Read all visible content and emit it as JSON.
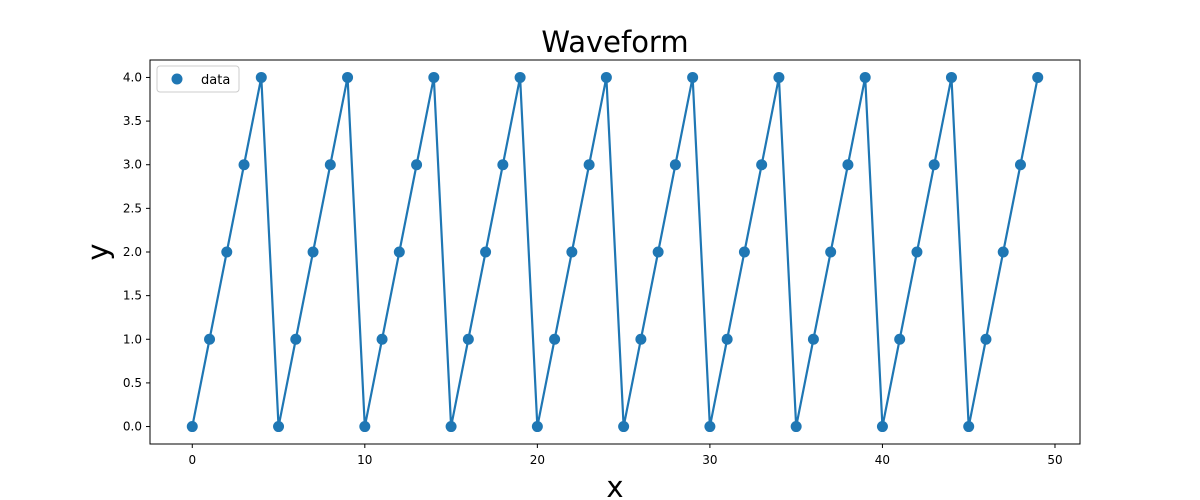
{
  "chart_data": {
    "type": "line",
    "title": "Waveform",
    "xlabel": "x",
    "ylabel": "y",
    "xlim": [
      -2.45,
      51.45
    ],
    "ylim": [
      -0.2,
      4.2
    ],
    "xticks": [
      0,
      10,
      20,
      30,
      40,
      50
    ],
    "yticks": [
      0.0,
      0.5,
      1.0,
      1.5,
      2.0,
      2.5,
      3.0,
      3.5,
      4.0
    ],
    "ytick_labels": [
      "0.0",
      "0.5",
      "1.0",
      "1.5",
      "2.0",
      "2.5",
      "3.0",
      "3.5",
      "4.0"
    ],
    "grid": false,
    "legend_position": "top-left",
    "series": [
      {
        "name": "data",
        "color": "#1f77b4",
        "marker": "circle",
        "x": [
          0,
          1,
          2,
          3,
          4,
          5,
          6,
          7,
          8,
          9,
          10,
          11,
          12,
          13,
          14,
          15,
          16,
          17,
          18,
          19,
          20,
          21,
          22,
          23,
          24,
          25,
          26,
          27,
          28,
          29,
          30,
          31,
          32,
          33,
          34,
          35,
          36,
          37,
          38,
          39,
          40,
          41,
          42,
          43,
          44,
          45,
          46,
          47,
          48,
          49
        ],
        "y": [
          0,
          1,
          2,
          3,
          4,
          0,
          1,
          2,
          3,
          4,
          0,
          1,
          2,
          3,
          4,
          0,
          1,
          2,
          3,
          4,
          0,
          1,
          2,
          3,
          4,
          0,
          1,
          2,
          3,
          4,
          0,
          1,
          2,
          3,
          4,
          0,
          1,
          2,
          3,
          4,
          0,
          1,
          2,
          3,
          4,
          0,
          1,
          2,
          3,
          4
        ]
      }
    ]
  }
}
